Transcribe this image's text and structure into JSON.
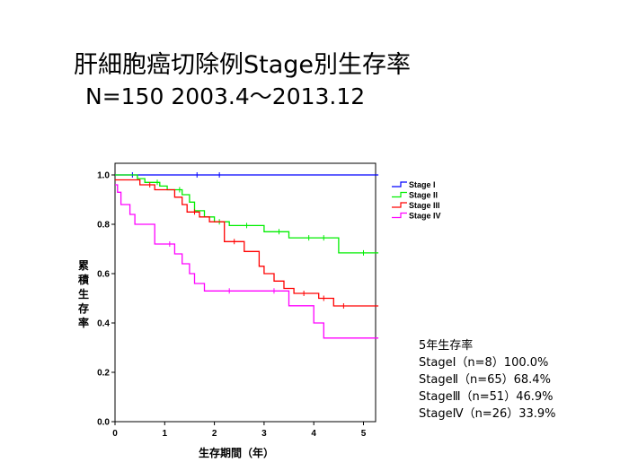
{
  "slide": {
    "title": "肝細胞癌切除例Stage別生存率",
    "subtitle": "N=150  2003.4～2013.12"
  },
  "chart_data": {
    "type": "line",
    "ylabel": "累積生存率",
    "xlabel": "生存期間（年）",
    "xlim": [
      0,
      5.3
    ],
    "ylim": [
      0,
      1.0
    ],
    "x_ticks": [
      0,
      1,
      2,
      3,
      4,
      5
    ],
    "x_tick_labels": [
      "0",
      "1",
      "2",
      "3",
      "4",
      "5"
    ],
    "y_ticks": [
      0.0,
      0.2,
      0.4,
      0.6,
      0.8,
      1.0
    ],
    "y_tick_labels": [
      "0.0",
      "0.2",
      "0.4",
      "0.6",
      "0.8",
      "1.0"
    ],
    "grid": false,
    "legend_position": "right",
    "series": [
      {
        "name": "Stage I",
        "color": "#0000ff",
        "points": [
          [
            0,
            1.0
          ],
          [
            5.3,
            1.0
          ]
        ],
        "censored": [
          [
            0.35,
            1.0
          ],
          [
            1.65,
            1.0
          ],
          [
            2.1,
            1.0
          ]
        ]
      },
      {
        "name": "Stage II",
        "color": "#00ee00",
        "points": [
          [
            0,
            1.0
          ],
          [
            0.45,
            1.0
          ],
          [
            0.45,
            0.985
          ],
          [
            0.6,
            0.985
          ],
          [
            0.6,
            0.97
          ],
          [
            0.9,
            0.97
          ],
          [
            0.9,
            0.955
          ],
          [
            1.05,
            0.955
          ],
          [
            1.05,
            0.94
          ],
          [
            1.35,
            0.94
          ],
          [
            1.35,
            0.92
          ],
          [
            1.5,
            0.92
          ],
          [
            1.5,
            0.89
          ],
          [
            1.6,
            0.89
          ],
          [
            1.6,
            0.855
          ],
          [
            1.8,
            0.855
          ],
          [
            1.8,
            0.83
          ],
          [
            2.0,
            0.83
          ],
          [
            2.0,
            0.81
          ],
          [
            2.3,
            0.81
          ],
          [
            2.3,
            0.795
          ],
          [
            3.0,
            0.795
          ],
          [
            3.0,
            0.77
          ],
          [
            3.5,
            0.77
          ],
          [
            3.5,
            0.745
          ],
          [
            4.5,
            0.745
          ],
          [
            4.5,
            0.684
          ],
          [
            5.3,
            0.684
          ]
        ],
        "censored": [
          [
            0.85,
            0.97
          ],
          [
            1.3,
            0.94
          ],
          [
            2.1,
            0.81
          ],
          [
            2.65,
            0.795
          ],
          [
            3.3,
            0.77
          ],
          [
            3.9,
            0.745
          ],
          [
            4.2,
            0.745
          ],
          [
            5.0,
            0.684
          ]
        ]
      },
      {
        "name": "Stage III",
        "color": "#ff0000",
        "points": [
          [
            0,
            0.98
          ],
          [
            0.5,
            0.98
          ],
          [
            0.5,
            0.96
          ],
          [
            0.8,
            0.96
          ],
          [
            0.8,
            0.94
          ],
          [
            1.2,
            0.94
          ],
          [
            1.2,
            0.91
          ],
          [
            1.35,
            0.91
          ],
          [
            1.35,
            0.88
          ],
          [
            1.45,
            0.88
          ],
          [
            1.45,
            0.85
          ],
          [
            1.7,
            0.85
          ],
          [
            1.7,
            0.83
          ],
          [
            1.9,
            0.83
          ],
          [
            1.9,
            0.81
          ],
          [
            2.2,
            0.81
          ],
          [
            2.2,
            0.73
          ],
          [
            2.6,
            0.73
          ],
          [
            2.6,
            0.69
          ],
          [
            2.9,
            0.69
          ],
          [
            2.9,
            0.63
          ],
          [
            3.0,
            0.63
          ],
          [
            3.0,
            0.6
          ],
          [
            3.2,
            0.6
          ],
          [
            3.2,
            0.57
          ],
          [
            3.4,
            0.57
          ],
          [
            3.4,
            0.54
          ],
          [
            3.6,
            0.54
          ],
          [
            3.6,
            0.52
          ],
          [
            4.1,
            0.52
          ],
          [
            4.1,
            0.5
          ],
          [
            4.4,
            0.5
          ],
          [
            4.4,
            0.469
          ],
          [
            5.3,
            0.469
          ]
        ],
        "censored": [
          [
            0.7,
            0.96
          ],
          [
            1.6,
            0.85
          ],
          [
            2.4,
            0.73
          ],
          [
            3.8,
            0.52
          ],
          [
            4.2,
            0.5
          ],
          [
            4.6,
            0.469
          ]
        ]
      },
      {
        "name": "Stage IV",
        "color": "#ff00ff",
        "points": [
          [
            0,
            0.96
          ],
          [
            0.05,
            0.96
          ],
          [
            0.05,
            0.93
          ],
          [
            0.12,
            0.93
          ],
          [
            0.12,
            0.88
          ],
          [
            0.3,
            0.88
          ],
          [
            0.3,
            0.84
          ],
          [
            0.4,
            0.84
          ],
          [
            0.4,
            0.8
          ],
          [
            0.8,
            0.8
          ],
          [
            0.8,
            0.72
          ],
          [
            1.2,
            0.72
          ],
          [
            1.2,
            0.68
          ],
          [
            1.35,
            0.68
          ],
          [
            1.35,
            0.64
          ],
          [
            1.5,
            0.64
          ],
          [
            1.5,
            0.6
          ],
          [
            1.6,
            0.6
          ],
          [
            1.6,
            0.56
          ],
          [
            1.8,
            0.56
          ],
          [
            1.8,
            0.53
          ],
          [
            3.5,
            0.53
          ],
          [
            3.5,
            0.47
          ],
          [
            4.0,
            0.47
          ],
          [
            4.0,
            0.4
          ],
          [
            4.2,
            0.4
          ],
          [
            4.2,
            0.339
          ],
          [
            5.3,
            0.339
          ]
        ],
        "censored": [
          [
            1.1,
            0.72
          ],
          [
            2.3,
            0.53
          ],
          [
            3.2,
            0.53
          ]
        ]
      }
    ]
  },
  "survival_table": {
    "heading": "5年生存率",
    "rows": [
      "StageⅠ（n=8）100.0%",
      "StageⅡ（n=65）68.4%",
      "StageⅢ（n=51）46.9%",
      "StageⅣ（n=26）33.9%"
    ]
  }
}
